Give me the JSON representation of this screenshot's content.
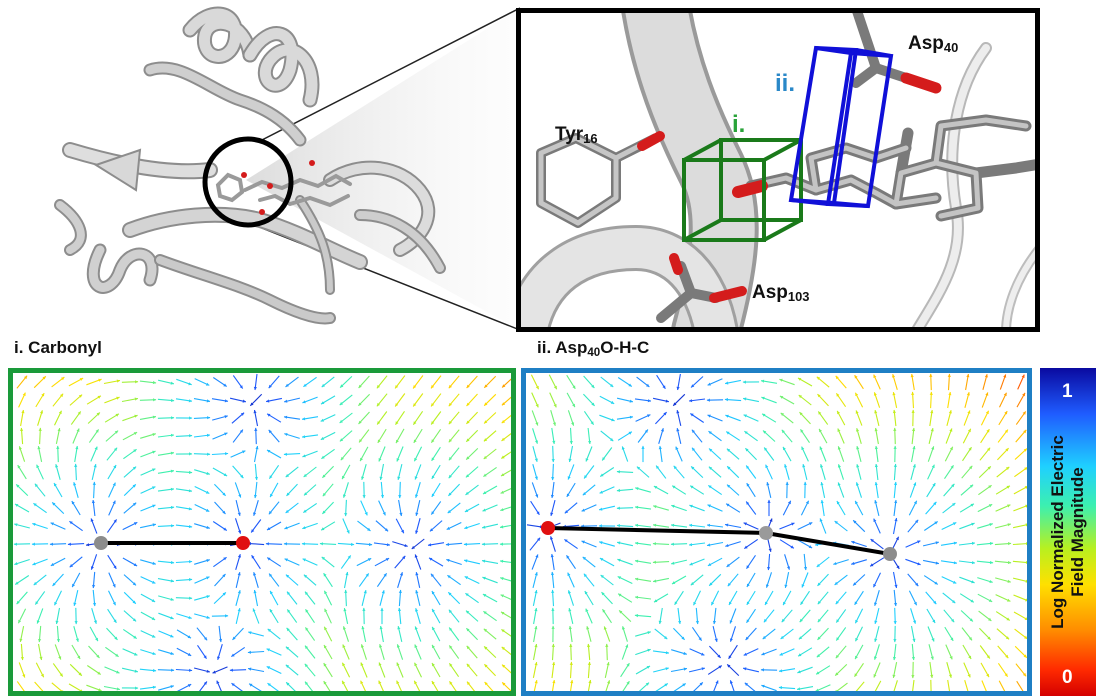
{
  "labels": {
    "tyr16": {
      "name": "Tyr",
      "sub": "16"
    },
    "asp40": {
      "name": "Asp",
      "sub": "40"
    },
    "asp103": {
      "name": "Asp",
      "sub": "103"
    },
    "box_i": "i.",
    "box_ii": "ii."
  },
  "panels": {
    "left_title": "i. Carbonyl",
    "right_title_pre": "ii. Asp",
    "right_title_sub": "40",
    "right_title_post": "O-H-C"
  },
  "colorbar": {
    "label_line1": "Log Normalized Electric",
    "label_line2": "Field Magnitude",
    "max_label": "1",
    "min_label": "0"
  },
  "colors": {
    "green_frame": "#1a9a3a",
    "blue_frame": "#1f7fc4",
    "box_i": "#1a7a1a",
    "box_ii": "#1010d8",
    "label_i": "#2aa33a",
    "label_ii": "#2a88c8"
  }
}
